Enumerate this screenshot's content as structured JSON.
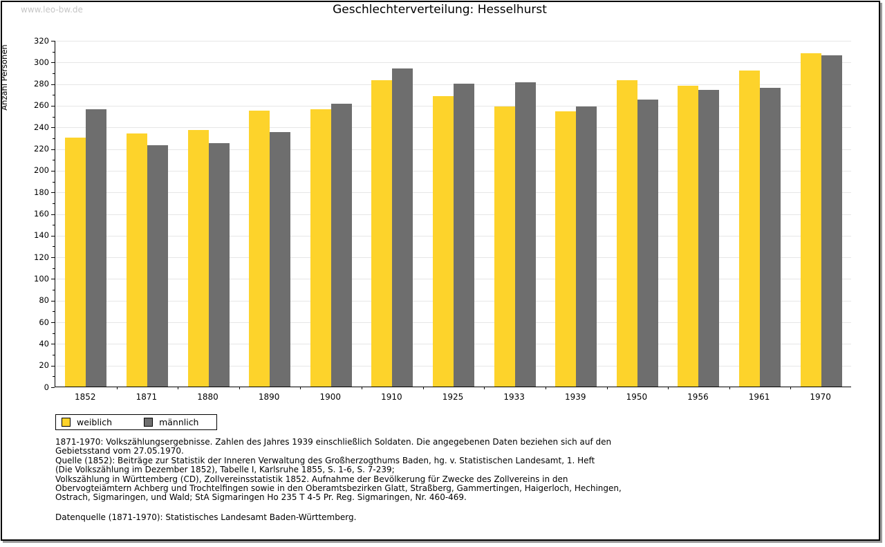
{
  "watermark": "www.leo-bw.de",
  "title": "Geschlechterverteilung: Hesselhurst",
  "ylabel": "Anzahl Personen",
  "legend": {
    "weiblich_label": "weiblich",
    "maennlich_label": "männlich"
  },
  "colors": {
    "weiblich": "#fdd32b",
    "maennlich": "#6e6e6e",
    "gridline": "#e6e6e6",
    "watermark": "#c6c6c6"
  },
  "chart_data": {
    "type": "bar",
    "title": "Geschlechterverteilung: Hesselhurst",
    "xlabel": "",
    "ylabel": "Anzahl Personen",
    "ylim": [
      0,
      320
    ],
    "ytick_step": 20,
    "ytick_minor_step": 10,
    "grid": true,
    "legend_position": "bottom-left",
    "categories": [
      "1852",
      "1871",
      "1880",
      "1890",
      "1900",
      "1910",
      "1925",
      "1933",
      "1939",
      "1950",
      "1956",
      "1961",
      "1970"
    ],
    "series": [
      {
        "name": "weiblich",
        "color": "#fdd32b",
        "values": [
          230,
          234,
          237,
          255,
          256,
          283,
          268,
          259,
          254,
          283,
          278,
          292,
          308
        ]
      },
      {
        "name": "männlich",
        "color": "#6e6e6e",
        "values": [
          256,
          223,
          225,
          235,
          261,
          294,
          280,
          281,
          259,
          265,
          274,
          276,
          306
        ]
      }
    ]
  },
  "source_notes": [
    "1871-1970: Volkszählungsergebnisse. Zahlen des Jahres 1939 einschließlich Soldaten. Die angegebenen Daten beziehen sich auf den",
    "Gebietsstand vom 27.05.1970.",
    "Quelle (1852): Beiträge zur Statistik der Inneren Verwaltung des Großherzogthums Baden, hg. v. Statistischen Landesamt, 1. Heft",
    "(Die Volkszählung im Dezember 1852), Tabelle I, Karlsruhe 1855, S. 1-6, S. 7-239;",
    "Volkszählung in Württemberg (CD), Zollvereinsstatistik 1852. Aufnahme der Bevölkerung für Zwecke des Zollvereins in den",
    "Obervogteiämtern Achberg und Trochtelfingen sowie in den Oberamtsbezirken Glatt, Straßberg, Gammertingen, Haigerloch, Hechingen,",
    "Ostrach, Sigmaringen, und Wald; StA Sigmaringen Ho 235 T 4-5 Pr. Reg. Sigmaringen, Nr. 460-469."
  ],
  "datasource": "Datenquelle (1871-1970): Statistisches Landesamt Baden-Württemberg."
}
